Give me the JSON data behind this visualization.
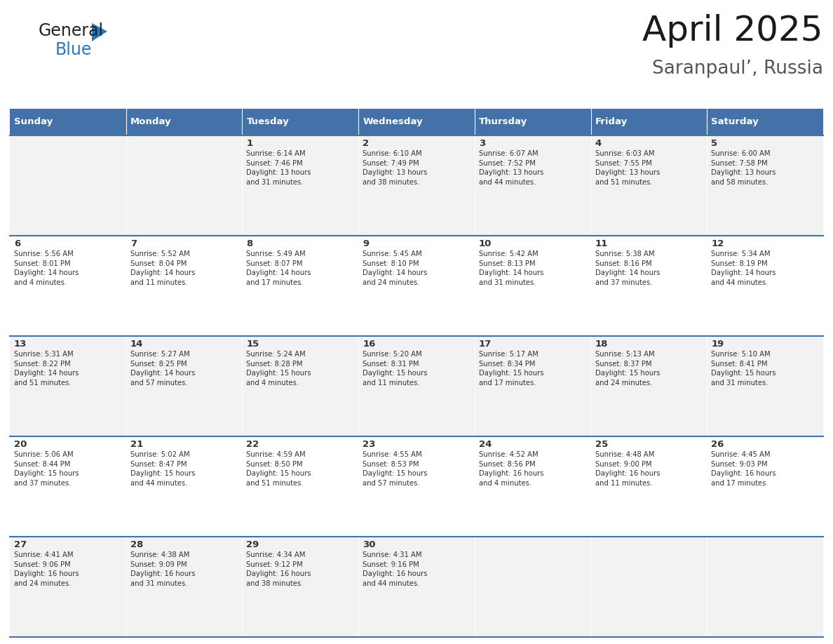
{
  "title": "April 2025",
  "subtitle": "Saranpaul’, Russia",
  "header_bg": "#4472a8",
  "header_text_color": "#ffffff",
  "cell_bg_odd": "#f2f2f2",
  "cell_bg_even": "#ffffff",
  "text_color": "#333333",
  "line_color": "#4472a8",
  "logo_general_color": "#222222",
  "logo_blue_color": "#2878c0",
  "logo_triangle_color": "#2878c0",
  "days_of_week": [
    "Sunday",
    "Monday",
    "Tuesday",
    "Wednesday",
    "Thursday",
    "Friday",
    "Saturday"
  ],
  "weeks": [
    [
      {
        "day": "",
        "info": ""
      },
      {
        "day": "",
        "info": ""
      },
      {
        "day": "1",
        "info": "Sunrise: 6:14 AM\nSunset: 7:46 PM\nDaylight: 13 hours\nand 31 minutes."
      },
      {
        "day": "2",
        "info": "Sunrise: 6:10 AM\nSunset: 7:49 PM\nDaylight: 13 hours\nand 38 minutes."
      },
      {
        "day": "3",
        "info": "Sunrise: 6:07 AM\nSunset: 7:52 PM\nDaylight: 13 hours\nand 44 minutes."
      },
      {
        "day": "4",
        "info": "Sunrise: 6:03 AM\nSunset: 7:55 PM\nDaylight: 13 hours\nand 51 minutes."
      },
      {
        "day": "5",
        "info": "Sunrise: 6:00 AM\nSunset: 7:58 PM\nDaylight: 13 hours\nand 58 minutes."
      }
    ],
    [
      {
        "day": "6",
        "info": "Sunrise: 5:56 AM\nSunset: 8:01 PM\nDaylight: 14 hours\nand 4 minutes."
      },
      {
        "day": "7",
        "info": "Sunrise: 5:52 AM\nSunset: 8:04 PM\nDaylight: 14 hours\nand 11 minutes."
      },
      {
        "day": "8",
        "info": "Sunrise: 5:49 AM\nSunset: 8:07 PM\nDaylight: 14 hours\nand 17 minutes."
      },
      {
        "day": "9",
        "info": "Sunrise: 5:45 AM\nSunset: 8:10 PM\nDaylight: 14 hours\nand 24 minutes."
      },
      {
        "day": "10",
        "info": "Sunrise: 5:42 AM\nSunset: 8:13 PM\nDaylight: 14 hours\nand 31 minutes."
      },
      {
        "day": "11",
        "info": "Sunrise: 5:38 AM\nSunset: 8:16 PM\nDaylight: 14 hours\nand 37 minutes."
      },
      {
        "day": "12",
        "info": "Sunrise: 5:34 AM\nSunset: 8:19 PM\nDaylight: 14 hours\nand 44 minutes."
      }
    ],
    [
      {
        "day": "13",
        "info": "Sunrise: 5:31 AM\nSunset: 8:22 PM\nDaylight: 14 hours\nand 51 minutes."
      },
      {
        "day": "14",
        "info": "Sunrise: 5:27 AM\nSunset: 8:25 PM\nDaylight: 14 hours\nand 57 minutes."
      },
      {
        "day": "15",
        "info": "Sunrise: 5:24 AM\nSunset: 8:28 PM\nDaylight: 15 hours\nand 4 minutes."
      },
      {
        "day": "16",
        "info": "Sunrise: 5:20 AM\nSunset: 8:31 PM\nDaylight: 15 hours\nand 11 minutes."
      },
      {
        "day": "17",
        "info": "Sunrise: 5:17 AM\nSunset: 8:34 PM\nDaylight: 15 hours\nand 17 minutes."
      },
      {
        "day": "18",
        "info": "Sunrise: 5:13 AM\nSunset: 8:37 PM\nDaylight: 15 hours\nand 24 minutes."
      },
      {
        "day": "19",
        "info": "Sunrise: 5:10 AM\nSunset: 8:41 PM\nDaylight: 15 hours\nand 31 minutes."
      }
    ],
    [
      {
        "day": "20",
        "info": "Sunrise: 5:06 AM\nSunset: 8:44 PM\nDaylight: 15 hours\nand 37 minutes."
      },
      {
        "day": "21",
        "info": "Sunrise: 5:02 AM\nSunset: 8:47 PM\nDaylight: 15 hours\nand 44 minutes."
      },
      {
        "day": "22",
        "info": "Sunrise: 4:59 AM\nSunset: 8:50 PM\nDaylight: 15 hours\nand 51 minutes."
      },
      {
        "day": "23",
        "info": "Sunrise: 4:55 AM\nSunset: 8:53 PM\nDaylight: 15 hours\nand 57 minutes."
      },
      {
        "day": "24",
        "info": "Sunrise: 4:52 AM\nSunset: 8:56 PM\nDaylight: 16 hours\nand 4 minutes."
      },
      {
        "day": "25",
        "info": "Sunrise: 4:48 AM\nSunset: 9:00 PM\nDaylight: 16 hours\nand 11 minutes."
      },
      {
        "day": "26",
        "info": "Sunrise: 4:45 AM\nSunset: 9:03 PM\nDaylight: 16 hours\nand 17 minutes."
      }
    ],
    [
      {
        "day": "27",
        "info": "Sunrise: 4:41 AM\nSunset: 9:06 PM\nDaylight: 16 hours\nand 24 minutes."
      },
      {
        "day": "28",
        "info": "Sunrise: 4:38 AM\nSunset: 9:09 PM\nDaylight: 16 hours\nand 31 minutes."
      },
      {
        "day": "29",
        "info": "Sunrise: 4:34 AM\nSunset: 9:12 PM\nDaylight: 16 hours\nand 38 minutes."
      },
      {
        "day": "30",
        "info": "Sunrise: 4:31 AM\nSunset: 9:16 PM\nDaylight: 16 hours\nand 44 minutes."
      },
      {
        "day": "",
        "info": ""
      },
      {
        "day": "",
        "info": ""
      },
      {
        "day": "",
        "info": ""
      }
    ]
  ]
}
